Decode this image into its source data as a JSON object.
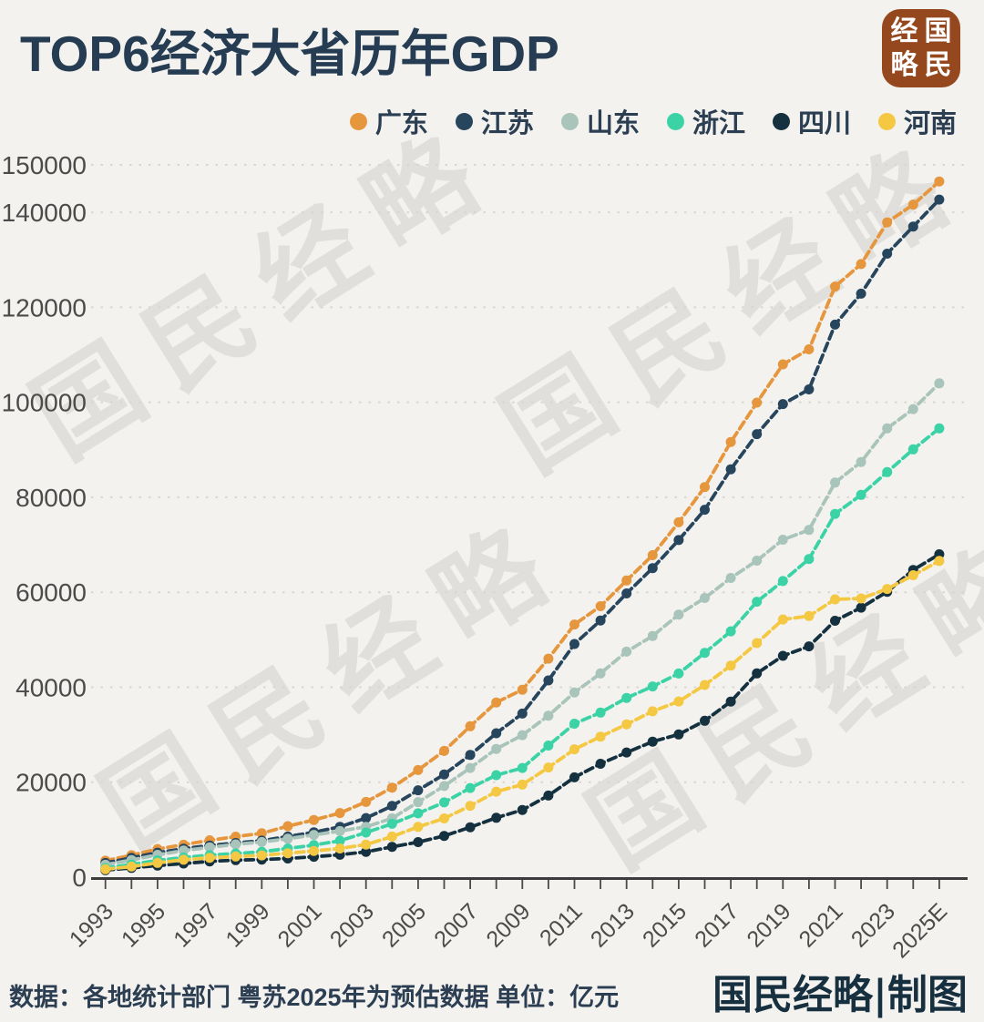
{
  "title": "TOP6经济大省历年GDP",
  "badge": {
    "chars": [
      "经",
      "国",
      "略",
      "民"
    ],
    "color": "#95481e"
  },
  "watermark": {
    "text": "国民经略"
  },
  "footer": {
    "source": "数据：各地统计部门  粤苏2025年为预估数据  单位：亿元",
    "credit": "国民经略|制图"
  },
  "chart_data": {
    "type": "line",
    "title": "TOP6经济大省历年GDP",
    "unit": "亿元",
    "xlabel": "",
    "ylabel": "",
    "ylim": [
      0,
      150000
    ],
    "y_ticks": [
      0,
      20000,
      40000,
      60000,
      80000,
      100000,
      120000,
      140000,
      150000
    ],
    "grid": "dashed-horizontal",
    "legend_position": "top-right",
    "marker": "circle",
    "line_style": "dashed",
    "x": [
      "1993",
      "1994",
      "1995",
      "1996",
      "1997",
      "1998",
      "1999",
      "2000",
      "2001",
      "2002",
      "2003",
      "2004",
      "2005",
      "2006",
      "2007",
      "2008",
      "2009",
      "2010",
      "2011",
      "2012",
      "2013",
      "2014",
      "2015",
      "2016",
      "2017",
      "2018",
      "2019",
      "2020",
      "2021",
      "2022",
      "2023",
      "2024",
      "2025E"
    ],
    "x_tick_labels": [
      "1993",
      "1995",
      "1997",
      "1999",
      "2001",
      "2003",
      "2005",
      "2007",
      "2009",
      "2011",
      "2013",
      "2015",
      "2017",
      "2019",
      "2021",
      "2023",
      "2025E"
    ],
    "series": [
      {
        "key": "guangdong",
        "name": "广东",
        "color": "#e6963c",
        "values": [
          3469,
          4619,
          5933,
          6835,
          7775,
          8530,
          9251,
          10741,
          12039,
          13502,
          15845,
          18865,
          22557,
          26588,
          31777,
          36797,
          39483,
          46013,
          53210,
          57068,
          62475,
          67810,
          74733,
          82163,
          91648,
          99945,
          107987,
          111152,
          124370,
          129119,
          137900,
          141634,
          146500
        ]
      },
      {
        "key": "jiangsu",
        "name": "江苏",
        "color": "#27455c",
        "values": [
          2998,
          4057,
          5155,
          6004,
          6680,
          7200,
          7698,
          8554,
          9457,
          10607,
          12443,
          15004,
          18306,
          21645,
          25741,
          30313,
          34457,
          41425,
          49110,
          54058,
          59753,
          65088,
          71000,
          77388,
          85901,
          93300,
          99632,
          102719,
          116364,
          122876,
          131300,
          137008,
          142700
        ]
      },
      {
        "key": "shandong",
        "name": "山东",
        "color": "#a9c4ba",
        "values": [
          2600,
          3600,
          4700,
          5600,
          6300,
          6900,
          7400,
          8100,
          8900,
          9700,
          10600,
          12400,
          15800,
          19200,
          23000,
          27000,
          29900,
          34000,
          38900,
          42900,
          47500,
          50800,
          55300,
          58800,
          63012,
          66649,
          71068,
          73129,
          83096,
          87435,
          94500,
          98566,
          104000
        ]
      },
      {
        "key": "zhejiang",
        "name": "浙江",
        "color": "#3bd3a6",
        "values": [
          1926,
          2667,
          3525,
          4146,
          4638,
          4988,
          5350,
          6036,
          6748,
          7670,
          9395,
          11243,
          13438,
          15742,
          18780,
          21487,
          22990,
          27722,
          32319,
          34665,
          37757,
          40173,
          42886,
          47251,
          51768,
          58003,
          62352,
          67000,
          76500,
          80500,
          85300,
          90100,
          94500
        ]
      },
      {
        "key": "sichuan",
        "name": "四川",
        "color": "#15313f",
        "values": [
          1486,
          1958,
          2443,
          2872,
          3320,
          3580,
          3711,
          3928,
          4293,
          4725,
          5333,
          6380,
          7385,
          8690,
          10505,
          12506,
          14151,
          17185,
          21027,
          23873,
          26261,
          28537,
          30053,
          32935,
          36980,
          42902,
          46616,
          48599,
          54000,
          56750,
          60100,
          64697,
          68000
        ]
      },
      {
        "key": "henan",
        "name": "河南",
        "color": "#f4c842",
        "values": [
          1660,
          2217,
          3003,
          3661,
          4079,
          4356,
          4576,
          5053,
          5533,
          6035,
          6868,
          8554,
          10587,
          12363,
          15012,
          18019,
          19480,
          23092,
          26931,
          29599,
          32191,
          34938,
          37002,
          40472,
          44553,
          49300,
          54259,
          54997,
          58500,
          58700,
          60700,
          63590,
          66600
        ]
      }
    ]
  }
}
